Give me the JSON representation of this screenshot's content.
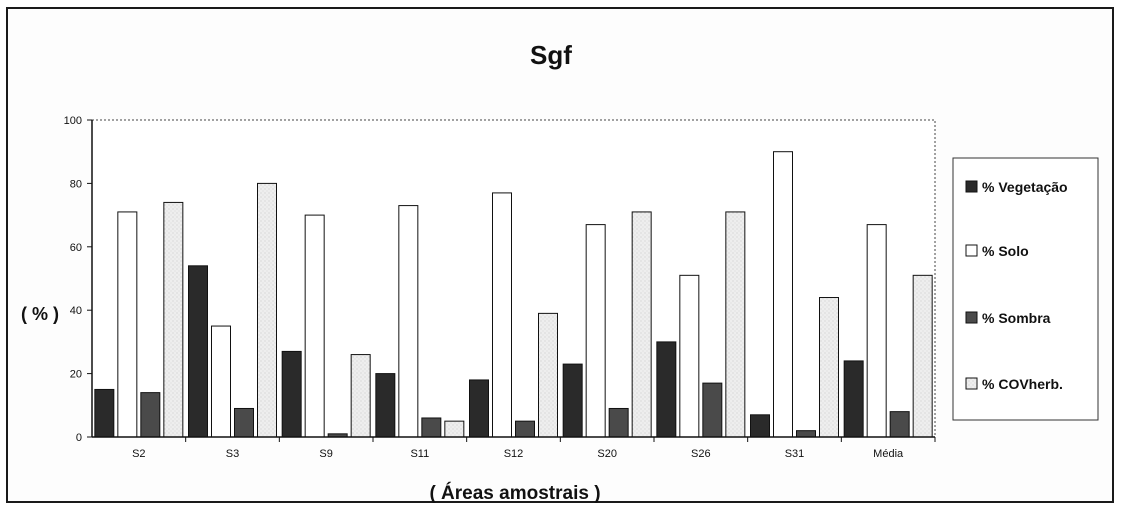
{
  "chart_data": {
    "type": "bar",
    "title": "Sgf",
    "xlabel": "( Áreas amostrais )",
    "ylabel": "( % )",
    "ylim": [
      0,
      100
    ],
    "yticks": [
      0,
      20,
      40,
      60,
      80,
      100
    ],
    "grid": false,
    "legend_position": "right",
    "categories": [
      "S2",
      "S3",
      "S9",
      "S11",
      "S12",
      "S20",
      "S26",
      "S31",
      "Média"
    ],
    "series": [
      {
        "name": "% Vegetação",
        "color": "#2a2a2a",
        "values": [
          15,
          54,
          27,
          20,
          18,
          23,
          30,
          7,
          24
        ]
      },
      {
        "name": "% Solo",
        "color": "#ffffff",
        "values": [
          71,
          35,
          70,
          73,
          77,
          67,
          51,
          90,
          67
        ]
      },
      {
        "name": "% Sombra",
        "color": "#4a4a4a",
        "values": [
          14,
          9,
          1,
          6,
          5,
          9,
          17,
          2,
          8
        ]
      },
      {
        "name": "% COVherb.",
        "color": "#eeeeee",
        "values": [
          74,
          80,
          26,
          5,
          39,
          71,
          71,
          44,
          51
        ]
      }
    ]
  }
}
